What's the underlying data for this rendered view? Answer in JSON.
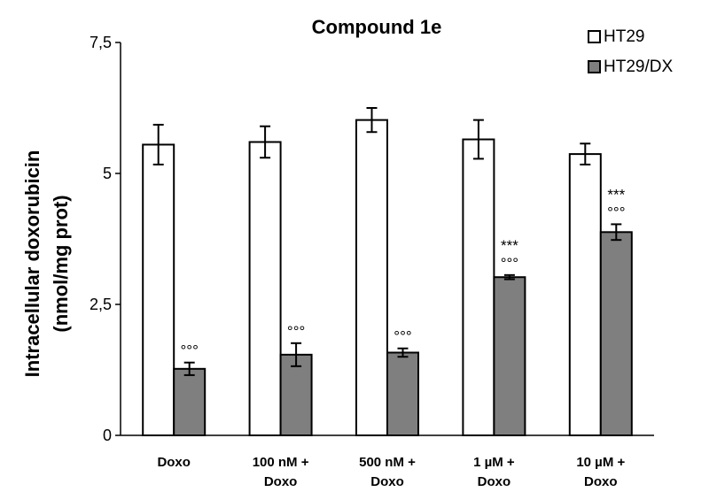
{
  "chart_data": {
    "type": "bar",
    "title": "Compound 1e",
    "ylabel_line1": "Intracellular doxorubicin",
    "ylabel_line2": "(nmol/mg prot)",
    "ylim": [
      0,
      7.5
    ],
    "yticks": [
      {
        "value": 0,
        "label": "0"
      },
      {
        "value": 2.5,
        "label": "2,5"
      },
      {
        "value": 5,
        "label": "5"
      },
      {
        "value": 7.5,
        "label": "7,5"
      }
    ],
    "categories": [
      [
        "Doxo"
      ],
      [
        "100 nM +",
        "Doxo"
      ],
      [
        "500 nM +",
        "Doxo"
      ],
      [
        "1 µM +",
        "Doxo"
      ],
      [
        "10 µM +",
        "Doxo"
      ]
    ],
    "series": [
      {
        "name": "HT29",
        "color": "#ffffff",
        "values": [
          5.55,
          5.6,
          6.02,
          5.65,
          5.37
        ],
        "errors": [
          0.38,
          0.3,
          0.23,
          0.37,
          0.2
        ],
        "annotations": [
          [],
          [],
          [],
          [],
          []
        ]
      },
      {
        "name": "HT29/DX",
        "color": "#7f7f7f",
        "values": [
          1.27,
          1.54,
          1.58,
          3.02,
          3.88
        ],
        "errors": [
          0.12,
          0.22,
          0.08,
          0.04,
          0.15
        ],
        "annotations": [
          [
            "°°°"
          ],
          [
            "°°°"
          ],
          [
            "°°°"
          ],
          [
            "***",
            "°°°"
          ],
          [
            "***",
            "°°°"
          ]
        ]
      }
    ],
    "legend": "top-right",
    "grid": false
  }
}
